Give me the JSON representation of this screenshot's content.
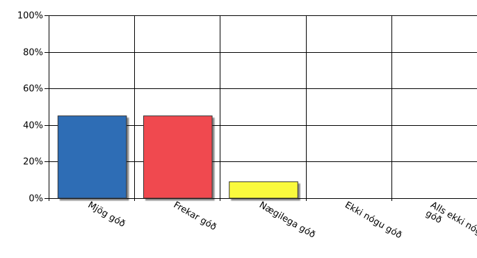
{
  "chart_data": {
    "type": "bar",
    "categories": [
      "Mjög góð",
      "Frekar góð",
      "Nægilega góð",
      "Ekki nógu góð",
      "Alls ekki nógu góð"
    ],
    "category_lines": [
      [
        "Mjög góð"
      ],
      [
        "Frekar góð"
      ],
      [
        "Nægilega góð"
      ],
      [
        "Ekki nógu góð"
      ],
      [
        "Alls ekki nógu",
        "góð"
      ]
    ],
    "values": [
      45,
      45,
      9,
      0,
      0
    ],
    "colors": [
      "#2f6db5",
      "#f04a50",
      "#fafa3c",
      "#999999",
      "#999999"
    ],
    "yticks": [
      "0%",
      "20%",
      "40%",
      "60%",
      "80%",
      "100%"
    ],
    "ylim": [
      0,
      100
    ],
    "title": "",
    "xlabel": "",
    "ylabel": "",
    "grid": true,
    "legend": "none"
  }
}
